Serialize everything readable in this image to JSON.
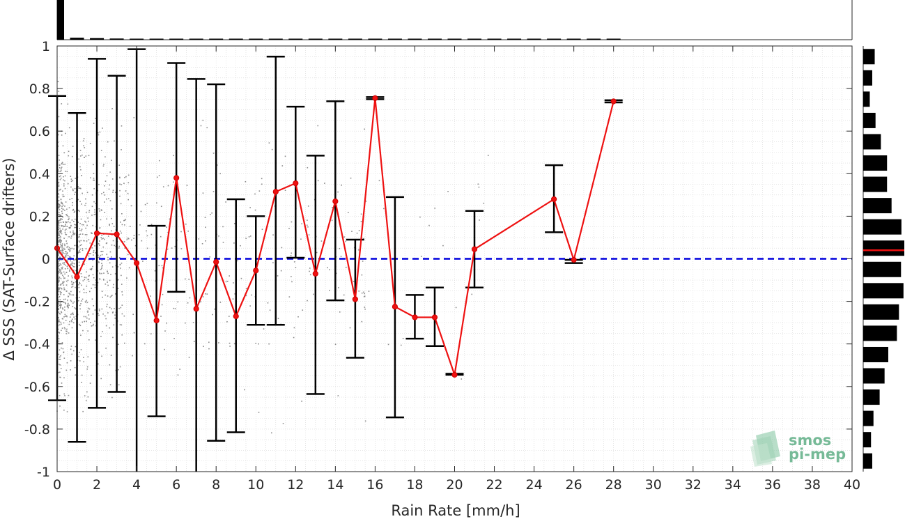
{
  "chart_data": {
    "type": "line",
    "xlabel": "Rain Rate [mm/h]",
    "ylabel": "Δ SSS (SAT-Surface drifters)",
    "xlim": [
      0,
      40
    ],
    "ylim": [
      -1,
      1
    ],
    "xticks": [
      0,
      2,
      4,
      6,
      8,
      10,
      12,
      14,
      16,
      18,
      20,
      22,
      24,
      26,
      28,
      30,
      32,
      34,
      36,
      38,
      40
    ],
    "yticks": [
      -1,
      -0.8,
      -0.6,
      -0.4,
      -0.2,
      0,
      0.2,
      0.4,
      0.6,
      0.8,
      1
    ],
    "xtick_labels": [
      "0",
      "2",
      "4",
      "6",
      "8",
      "10",
      "12",
      "14",
      "16",
      "18",
      "20",
      "22",
      "24",
      "26",
      "28",
      "30",
      "32",
      "34",
      "36",
      "38",
      "40"
    ],
    "ytick_labels": [
      "-1",
      "-0.8",
      "-0.6",
      "-0.4",
      "-0.2",
      "0",
      "0.2",
      "0.4",
      "0.6",
      "0.8",
      "1"
    ],
    "grid": true,
    "reference_line": {
      "y": 0,
      "color": "#0000dd",
      "style": "dashed"
    },
    "series": [
      {
        "type": "mean_with_errorbars",
        "color": "#ee1111",
        "errorbar_color": "#000000",
        "x": [
          0,
          1,
          2,
          3,
          4,
          5,
          6,
          7,
          8,
          9,
          10,
          11,
          12,
          13,
          14,
          15,
          16,
          17,
          18,
          19,
          20,
          21,
          25,
          26,
          28
        ],
        "y": [
          0.05,
          -0.085,
          0.12,
          0.115,
          -0.02,
          -0.29,
          0.38,
          -0.235,
          -0.015,
          -0.27,
          -0.055,
          0.315,
          0.355,
          -0.07,
          0.27,
          -0.19,
          0.755,
          -0.225,
          -0.275,
          -0.275,
          -0.545,
          0.045,
          0.28,
          -0.005,
          0.74
        ],
        "lower": [
          -0.665,
          -0.86,
          -0.7,
          -0.625,
          -1.0,
          -0.74,
          -0.155,
          -1.0,
          -0.855,
          -0.815,
          -0.31,
          -0.31,
          0.005,
          -0.635,
          -0.195,
          -0.465,
          0.75,
          -0.745,
          -0.375,
          -0.41,
          -0.545,
          -0.135,
          0.125,
          -0.02,
          0.735
        ],
        "upper": [
          0.765,
          0.685,
          0.94,
          0.86,
          0.985,
          0.155,
          0.92,
          0.845,
          0.82,
          0.28,
          0.2,
          0.95,
          0.715,
          0.485,
          0.74,
          0.09,
          0.76,
          0.29,
          -0.17,
          -0.135,
          -0.54,
          0.225,
          0.44,
          -0.005,
          0.745
        ]
      }
    ],
    "scatter_background": {
      "color": "#8c8c8c",
      "description_hidden": true
    },
    "top_histogram": {
      "bins_x": [
        0,
        1,
        2,
        3,
        4,
        5,
        6,
        7,
        8,
        9,
        10,
        11,
        12,
        13,
        14,
        15,
        16,
        17,
        18,
        19,
        20,
        21,
        22,
        23,
        24,
        25,
        26,
        27,
        28
      ],
      "relative_height": [
        1.0,
        0.05,
        0.04,
        0.03,
        0.02,
        0.02,
        0.02,
        0.015,
        0.015,
        0.015,
        0.015,
        0.015,
        0.015,
        0.015,
        0.015,
        0.015,
        0.015,
        0.015,
        0.015,
        0.015,
        0.015,
        0.015,
        0.015,
        0.015,
        0.015,
        0.025,
        0.015,
        0.015,
        0.025
      ]
    },
    "right_histogram": {
      "bins_y": [
        0.95,
        0.85,
        0.75,
        0.65,
        0.55,
        0.45,
        0.35,
        0.25,
        0.15,
        0.05,
        -0.05,
        -0.15,
        -0.25,
        -0.35,
        -0.45,
        -0.55,
        -0.65,
        -0.75,
        -0.85,
        -0.95
      ],
      "relative_length": [
        0.28,
        0.22,
        0.16,
        0.3,
        0.43,
        0.58,
        0.58,
        0.69,
        0.93,
        1.0,
        0.92,
        0.98,
        0.87,
        0.82,
        0.61,
        0.52,
        0.4,
        0.25,
        0.19,
        0.22
      ],
      "median_y": 0.04,
      "median_color": "#ee1111"
    }
  },
  "logo": {
    "line1": "smos",
    "line2": "pi-mep"
  }
}
